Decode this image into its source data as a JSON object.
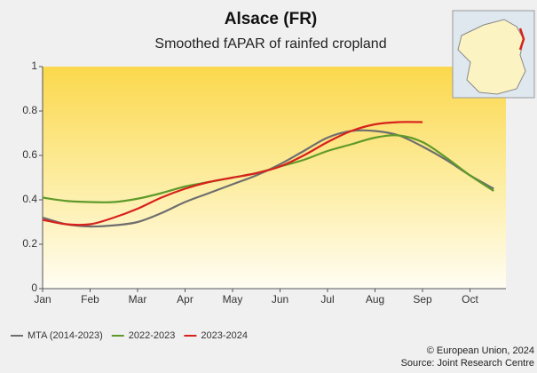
{
  "chart_data": {
    "type": "line",
    "title": "Alsace (FR)",
    "subtitle": "Smoothed fAPAR of rainfed cropland",
    "categories": [
      "Jan",
      null,
      "Feb",
      null,
      "Mar",
      null,
      "Apr",
      null,
      "May",
      null,
      "Jun",
      null,
      "Jul",
      null,
      "Aug",
      null,
      "Sep",
      null,
      "Oct",
      null
    ],
    "series": [
      {
        "name": "MTA (2014-2023)",
        "color": "#6e6e6e",
        "values": [
          0.32,
          0.29,
          0.28,
          0.285,
          0.3,
          0.34,
          0.39,
          0.43,
          0.47,
          0.51,
          0.56,
          0.62,
          0.68,
          0.71,
          0.71,
          0.69,
          0.64,
          0.58,
          0.51,
          0.45
        ]
      },
      {
        "name": "2022-2023",
        "color": "#5e9a2a",
        "values": [
          0.41,
          0.395,
          0.39,
          0.39,
          0.405,
          0.43,
          0.46,
          0.48,
          0.5,
          0.52,
          0.55,
          0.58,
          0.62,
          0.65,
          0.68,
          0.69,
          0.66,
          0.59,
          0.51,
          0.44
        ]
      },
      {
        "name": "2023-2024",
        "color": "#d8211c",
        "values": [
          0.31,
          0.29,
          0.29,
          0.32,
          0.36,
          0.41,
          0.45,
          0.48,
          0.5,
          0.52,
          0.55,
          0.6,
          0.66,
          0.71,
          0.74,
          0.75,
          0.75,
          null,
          null,
          null
        ]
      }
    ],
    "ylim": [
      0,
      1
    ],
    "yticks": [
      0,
      0.2,
      0.4,
      0.6,
      0.8,
      1
    ],
    "copyright": "© European Union, 2024",
    "source": "Source: Joint Research Centre"
  }
}
